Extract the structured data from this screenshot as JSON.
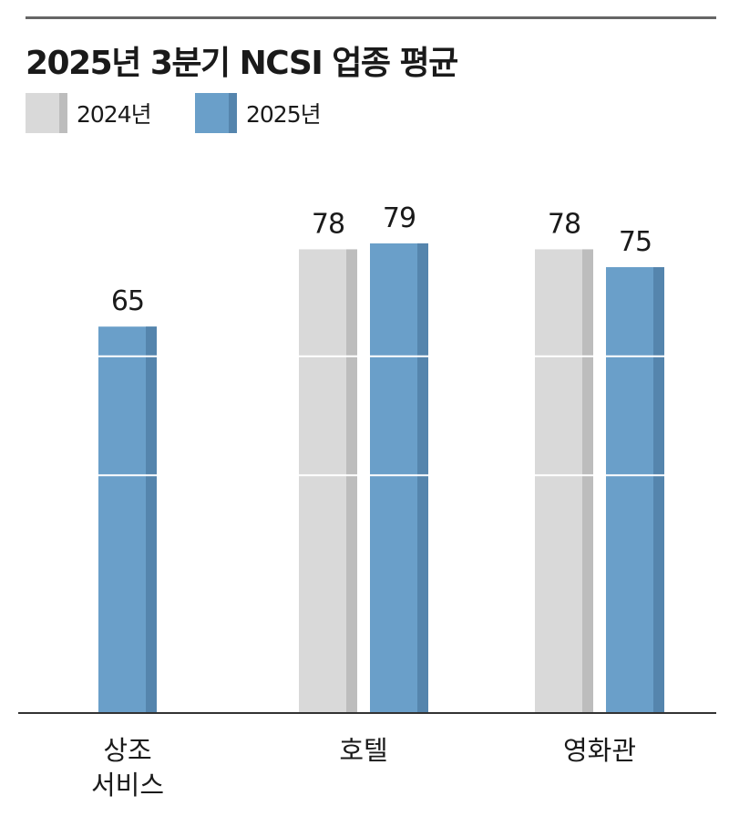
{
  "title": "2025년 3분기 NCSI 업종 평균",
  "colors": {
    "y2024": "#d9d9d9",
    "y2024_edge": "#bdbdbd",
    "y2025": "#6a9fc9",
    "y2025_edge": "#5585ad",
    "axis": "#333333",
    "grid": "#ffffff"
  },
  "chart_data": {
    "type": "bar",
    "title": "2025년 3분기 NCSI 업종 평균",
    "categories": [
      "상조 서비스",
      "호텔",
      "영화관"
    ],
    "category_lines": [
      [
        "상조",
        "서비스"
      ],
      [
        "호텔"
      ],
      [
        "영화관"
      ]
    ],
    "series": [
      {
        "name": "2024년",
        "values": [
          null,
          78,
          78
        ]
      },
      {
        "name": "2025년",
        "values": [
          65,
          79,
          75
        ]
      }
    ],
    "xlabel": "",
    "ylabel": "",
    "ylim": [
      0,
      79
    ],
    "gridlines": [
      40,
      60
    ],
    "legend_position": "top-left",
    "data_labels": true
  }
}
